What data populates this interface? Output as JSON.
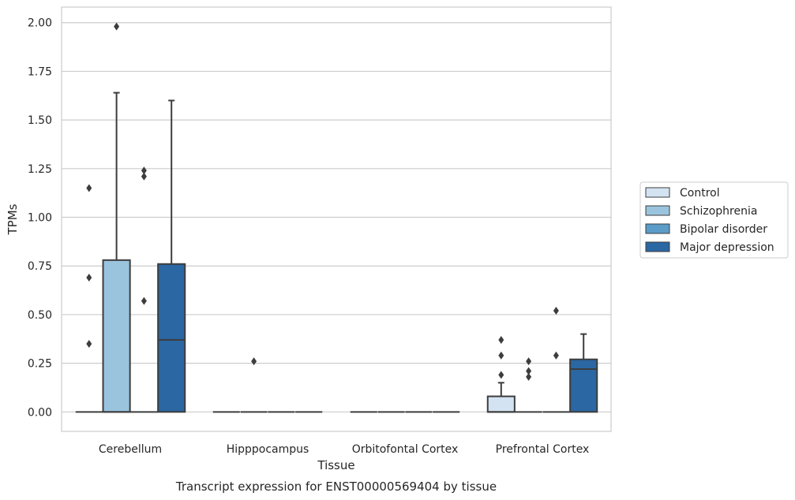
{
  "chart_data": {
    "type": "box",
    "title": "",
    "caption": "Transcript expression for ENST00000569404 by tissue",
    "xlabel": "Tissue",
    "ylabel": "TPMs",
    "ylim": [
      -0.1,
      2.08
    ],
    "yticks": [
      "0.00",
      "0.25",
      "0.50",
      "0.75",
      "1.00",
      "1.25",
      "1.50",
      "1.75",
      "2.00"
    ],
    "grid": true,
    "legend_position": "right",
    "categories": [
      "Cerebellum",
      "Hipppocampus",
      "Orbitofontal Cortex",
      "Prefrontal Cortex"
    ],
    "series": [
      {
        "name": "Control",
        "color": "#d3e3f2",
        "boxes": [
          {
            "q1": 0,
            "median": 0,
            "q3": 0,
            "whisker_low": 0,
            "whisker_high": 0,
            "outliers": [
              1.15,
              0.69,
              0.35
            ]
          },
          {
            "q1": 0,
            "median": 0,
            "q3": 0,
            "whisker_low": 0,
            "whisker_high": 0,
            "outliers": []
          },
          {
            "q1": 0,
            "median": 0,
            "q3": 0,
            "whisker_low": 0,
            "whisker_high": 0,
            "outliers": []
          },
          {
            "q1": 0,
            "median": 0,
            "q3": 0.08,
            "whisker_low": 0,
            "whisker_high": 0.15,
            "outliers": [
              0.37,
              0.29,
              0.19
            ]
          }
        ]
      },
      {
        "name": "Schizophrenia",
        "color": "#9ac4de",
        "boxes": [
          {
            "q1": 0,
            "median": 0,
            "q3": 0.78,
            "whisker_low": 0,
            "whisker_high": 1.64,
            "outliers": [
              1.98
            ]
          },
          {
            "q1": 0,
            "median": 0,
            "q3": 0,
            "whisker_low": 0,
            "whisker_high": 0,
            "outliers": [
              0.26
            ]
          },
          {
            "q1": 0,
            "median": 0,
            "q3": 0,
            "whisker_low": 0,
            "whisker_high": 0,
            "outliers": []
          },
          {
            "q1": 0,
            "median": 0,
            "q3": 0,
            "whisker_low": 0,
            "whisker_high": 0,
            "outliers": [
              0.26,
              0.21,
              0.18
            ]
          }
        ]
      },
      {
        "name": "Bipolar disorder",
        "color": "#5b9cc9",
        "boxes": [
          {
            "q1": 0,
            "median": 0,
            "q3": 0,
            "whisker_low": 0,
            "whisker_high": 0,
            "outliers": [
              1.24,
              1.21,
              0.57
            ]
          },
          {
            "q1": 0,
            "median": 0,
            "q3": 0,
            "whisker_low": 0,
            "whisker_high": 0,
            "outliers": []
          },
          {
            "q1": 0,
            "median": 0,
            "q3": 0,
            "whisker_low": 0,
            "whisker_high": 0,
            "outliers": []
          },
          {
            "q1": 0,
            "median": 0,
            "q3": 0,
            "whisker_low": 0,
            "whisker_high": 0,
            "outliers": [
              0.52,
              0.29
            ]
          }
        ]
      },
      {
        "name": "Major depression",
        "color": "#2a67a3",
        "boxes": [
          {
            "q1": 0,
            "median": 0.37,
            "q3": 0.76,
            "whisker_low": 0,
            "whisker_high": 1.6,
            "outliers": []
          },
          {
            "q1": 0,
            "median": 0,
            "q3": 0,
            "whisker_low": 0,
            "whisker_high": 0,
            "outliers": []
          },
          {
            "q1": 0,
            "median": 0,
            "q3": 0,
            "whisker_low": 0,
            "whisker_high": 0,
            "outliers": []
          },
          {
            "q1": 0,
            "median": 0.22,
            "q3": 0.27,
            "whisker_low": 0,
            "whisker_high": 0.4,
            "outliers": []
          }
        ]
      }
    ]
  }
}
